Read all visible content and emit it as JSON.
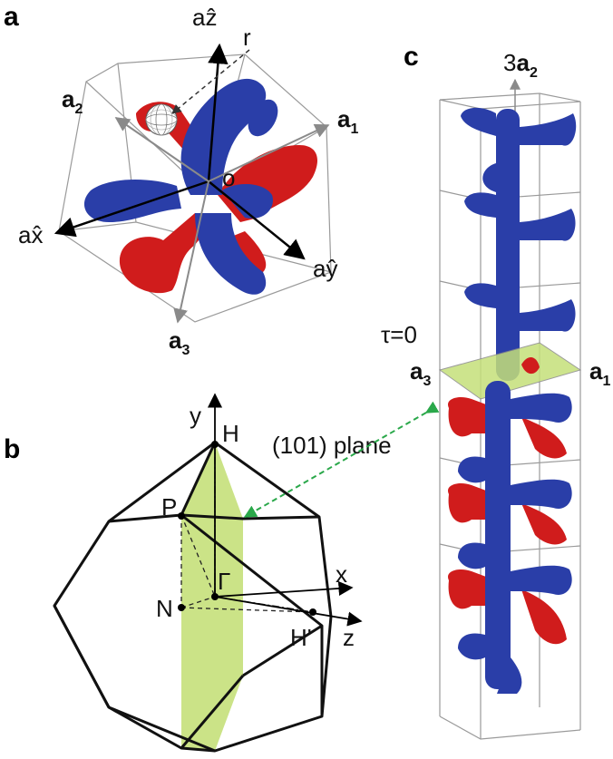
{
  "panels": {
    "a": {
      "letter": "a",
      "axis_z": "aẑ",
      "axis_x": "ax̂",
      "axis_y": "aŷ",
      "r": "r",
      "o": "o",
      "a1": "a",
      "a1_sub": "1",
      "a2": "a",
      "a2_sub": "2",
      "a3": "a",
      "a3_sub": "3"
    },
    "b": {
      "letter": "b",
      "y": "y",
      "x": "x",
      "z": "z",
      "H": "H",
      "P": "P",
      "N": "N",
      "Gamma": "Γ",
      "Hprime": "H'",
      "plane_label": "(101) plane"
    },
    "c": {
      "letter": "c",
      "top_label_prefix": "3",
      "top_label_vec": "a",
      "top_label_sub": "2",
      "tau": "τ=0",
      "a1": "a",
      "a1_sub": "1",
      "a3": "a",
      "a3_sub": "3"
    }
  },
  "colors": {
    "blue_tube": "#2a3ea8",
    "red_tube": "#d01c1c",
    "plane": "#c5e07a",
    "arrow_green": "#2aa84a",
    "cube_edge": "#9a9a9a"
  }
}
